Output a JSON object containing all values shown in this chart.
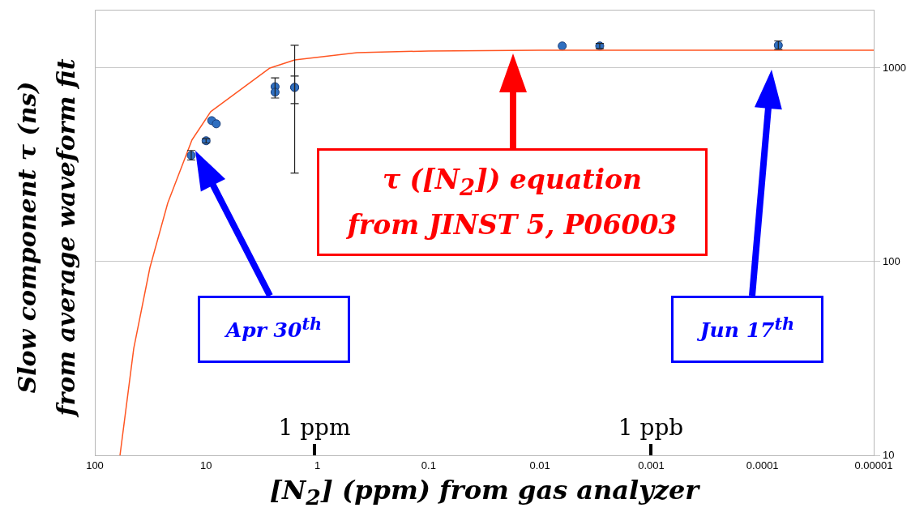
{
  "chart_data": {
    "type": "scatter",
    "xlabel": "[N$_{2}$] (ppm) from gas analyzer",
    "ylabel": "Slow component τ (ns)\nfrom average waveform fit",
    "log": "xy",
    "grid": "y",
    "legend": false,
    "marker": "circle",
    "xlim": [
      100,
      1e-05
    ],
    "xticks": [
      100,
      10,
      1,
      0.1,
      0.01,
      0.001,
      0.0001,
      {
        "value": 1e-05,
        "label": "0.00001"
      }
    ],
    "ylim": [
      10,
      2000
    ],
    "yticks": [
      10,
      100,
      1000
    ],
    "series": [
      {
        "color": "#2f6fc0",
        "x": [
          13.6,
          10,
          8.9,
          8.1,
          2.4,
          2.4,
          1.6,
          1.6,
          0.0063,
          0.0029,
          7.2e-05
        ],
        "values": [
          354,
          421,
          535,
          515,
          801,
          750,
          794,
          794,
          1300,
          1300,
          1310
        ],
        "errors": [
          [
            335,
            375
          ],
          [
            410,
            432
          ],
          null,
          null,
          [
            700,
            890
          ],
          null,
          [
            655,
            908
          ],
          [
            287,
            1310
          ],
          null,
          [
            1260,
            1340
          ],
          [
            1250,
            1380
          ]
        ]
      },
      {
        "type": "line",
        "color": "#ff5522",
        "marker": "none",
        "x": [
          59.4,
          44.7,
          32,
          22.1,
          13.4,
          9.1,
          2.67,
          1.6,
          0.44,
          0.1,
          0.01,
          1e-05
        ],
        "values": [
          10,
          35.6,
          93,
          201,
          425,
          595,
          1000,
          1100,
          1200,
          1225,
          1235,
          1235
        ]
      }
    ],
    "annotations": [
      "τ ([N$_{2}$]) equation from JINST 5, P06003",
      "Apr 30$^{th}$",
      "Jun 17$^{th}$",
      "1 ppm",
      "1 ppb"
    ]
  }
}
